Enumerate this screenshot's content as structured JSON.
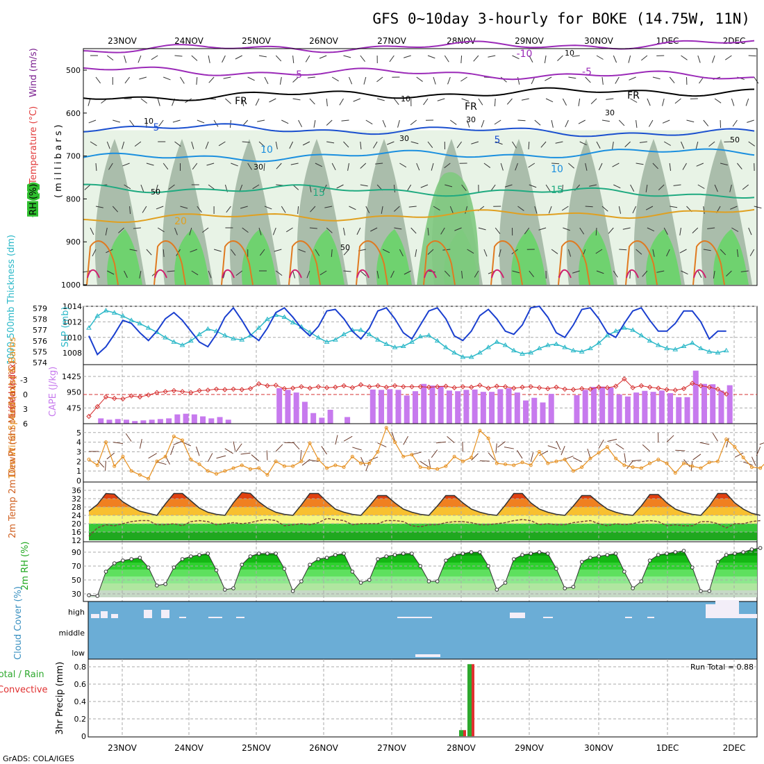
{
  "title": "GFS 0~10day 3-hourly for BOKE (14.75W, 11N)",
  "dates": [
    "23NOV",
    "24NOV",
    "25NOV",
    "26NOV",
    "27NOV",
    "28NOV",
    "29NOV",
    "30NOV",
    "1DEC",
    "2DEC"
  ],
  "credit": "GrADS: COLA/IGES",
  "colors": {
    "rh_green": "#2fbf2f",
    "temp_label": "#e23b3b",
    "wind_label": "#7a1f8f",
    "slp": "#1a3fcf",
    "thickness": "#2bb8c8",
    "lifted_index": "#d63030",
    "cape": "#c77aee",
    "wind10m": "#e69020",
    "rh2m": "#1fa81f",
    "cloud": "#6badd6",
    "precip_total": "#2da82d",
    "precip_conv": "#e03030"
  },
  "panels": {
    "upper": {
      "ylabels": [
        "RH (%)",
        "Temperature (°C)",
        "Wind (m/s)"
      ],
      "axis_label": "(millibars)",
      "ticks": [
        "500",
        "600",
        "700",
        "800",
        "900",
        "1000"
      ],
      "contour_labels": {
        "temp": [
          {
            "text": "-10",
            "color": "#9b2ab8"
          },
          {
            "text": "-5",
            "color": "#9b2ab8"
          },
          {
            "text": "-5",
            "color": "#9b2ab8"
          },
          {
            "text": "FR",
            "color": "#000000"
          },
          {
            "text": "FR",
            "color": "#000000"
          },
          {
            "text": "FR",
            "color": "#000000"
          },
          {
            "text": "5",
            "color": "#1a4fcf"
          },
          {
            "text": "5",
            "color": "#1a4fcf"
          },
          {
            "text": "10",
            "color": "#1a8fdf"
          },
          {
            "text": "10",
            "color": "#1a8fdf"
          },
          {
            "text": "15",
            "color": "#1faa80"
          },
          {
            "text": "15",
            "color": "#1faa80"
          },
          {
            "text": "20",
            "color": "#e0a020"
          }
        ],
        "rh": [
          "10",
          "10",
          "10",
          "30",
          "30",
          "30",
          "30",
          "50",
          "50",
          "50"
        ]
      }
    },
    "slp": {
      "ylabel_thickness": "1000-500mb Thickness (dm)",
      "ylabel_slp": "SLP (mb)",
      "ticks_left": [
        "579",
        "578",
        "577",
        "576",
        "575",
        "574"
      ],
      "ticks_right": [
        "1014",
        "1012",
        "1010",
        "1008"
      ]
    },
    "cape": {
      "ylabel_li": "Lifted Index",
      "ylabel_cape": "CAPE (J/kg)",
      "ticks_left": [
        "-3",
        "0",
        "3",
        "6"
      ],
      "ticks_right": [
        "1425",
        "950",
        "475"
      ]
    },
    "wind10": {
      "ylabel": "10m Wind Speed (m/s) & Barbs",
      "ticks": [
        "5",
        "4",
        "3",
        "2",
        "1",
        "0"
      ]
    },
    "temp2m": {
      "ylabel": "2m Temp 2m DewPt (6hr Min/Max) (°C)",
      "ticks": [
        "36",
        "32",
        "28",
        "24",
        "20",
        "16",
        "12"
      ]
    },
    "rh2m": {
      "ylabel": "2m RH (%)",
      "ticks": [
        "90",
        "70",
        "50",
        "30"
      ]
    },
    "cloud": {
      "ylabel": "Cloud Cover (%)",
      "ticks": [
        "high",
        "middle",
        "low"
      ]
    },
    "precip": {
      "ylabel": "3hr Precip (mm)",
      "legend_total": "Total / Rain",
      "legend_conv": "Convective",
      "ticks": [
        "0.8",
        "0.6",
        "0.4",
        "0.2",
        "0"
      ],
      "run_total": "Run Total = 0.88"
    }
  },
  "chart_data": {
    "type": "line",
    "time_step_hours": 3,
    "x_dates": [
      "23NOV",
      "24NOV",
      "25NOV",
      "26NOV",
      "27NOV",
      "28NOV",
      "29NOV",
      "30NOV",
      "1DEC",
      "2DEC"
    ],
    "slp_mb": [
      1010.2,
      1007.8,
      1008.8,
      1010.4,
      1012.2,
      1011.8,
      1010.6,
      1009.6,
      1010.8,
      1012.4,
      1013.2,
      1012.2,
      1010.8,
      1009.4,
      1008.8,
      1010.4,
      1012.6,
      1013.8,
      1012.2,
      1010.4,
      1009.6,
      1011.2,
      1013.2,
      1013.8,
      1012.6,
      1011.2,
      1010.2,
      1011.4,
      1013.4,
      1013.6,
      1012.4,
      1010.8,
      1009.8,
      1011.2,
      1013.4,
      1013.8,
      1012.4,
      1010.6,
      1009.8,
      1011.6,
      1013.4,
      1013.8,
      1012.4,
      1010.2,
      1009.6,
      1010.8,
      1012.8,
      1013.6,
      1012.4,
      1010.8,
      1010.4,
      1011.6,
      1013.8,
      1014.0,
      1012.6,
      1010.6,
      1010.0,
      1011.6,
      1013.6,
      1013.8,
      1012.4,
      1010.6,
      1010.0,
      1011.8,
      1013.4,
      1013.8,
      1012.2,
      1010.8,
      1010.8,
      1011.8,
      1013.4,
      1013.4,
      1012.0,
      1009.8,
      1010.8,
      1010.8
    ],
    "thickness_dm": [
      577.2,
      578.3,
      578.8,
      578.6,
      578.3,
      577.9,
      577.6,
      577.2,
      576.8,
      576.3,
      575.9,
      575.6,
      576.0,
      576.6,
      577.1,
      576.9,
      576.5,
      576.2,
      576.1,
      576.5,
      577.2,
      578.0,
      578.4,
      578.2,
      577.7,
      577.3,
      576.8,
      576.3,
      575.9,
      576.1,
      576.6,
      577.0,
      577.0,
      576.6,
      576.1,
      575.7,
      575.4,
      575.5,
      575.9,
      576.4,
      576.5,
      576.0,
      575.4,
      574.9,
      574.5,
      574.5,
      574.9,
      575.4,
      575.9,
      575.6,
      575.1,
      574.8,
      574.9,
      575.3,
      575.6,
      575.7,
      575.4,
      575.1,
      575.0,
      575.3,
      575.8,
      576.5,
      576.9,
      577.2,
      577.0,
      576.5,
      576.0,
      575.6,
      575.3,
      575.2,
      575.5,
      575.8,
      575.3,
      575.0,
      574.9,
      575.1
    ],
    "lifted_index": [
      4.5,
      2.5,
      0.5,
      0.8,
      0.9,
      0.3,
      0.5,
      0.1,
      -0.4,
      -0.6,
      -0.8,
      -0.6,
      -0.4,
      -0.8,
      -0.9,
      -1.1,
      -1.0,
      -1.1,
      -1.0,
      -1.2,
      -2.2,
      -1.8,
      -1.9,
      -1.2,
      -1.3,
      -1.6,
      -1.3,
      -1.6,
      -1.4,
      -1.5,
      -1.8,
      -1.4,
      -2.0,
      -1.6,
      -1.8,
      -1.5,
      -1.8,
      -1.6,
      -1.6,
      -1.6,
      -1.5,
      -1.6,
      -1.7,
      -1.4,
      -1.6,
      -1.5,
      -1.9,
      -1.3,
      -1.7,
      -1.6,
      -1.3,
      -1.5,
      -1.6,
      -1.4,
      -1.2,
      -1.5,
      -1.1,
      -1.0,
      -1.2,
      -1.1,
      -1.5,
      -1.4,
      -1.7,
      -3.2,
      -1.4,
      -1.8,
      -1.5,
      -1.3,
      -1.0,
      -0.9,
      -1.2,
      -2.3,
      -1.8,
      -1.5,
      -1.1,
      -0.1
    ],
    "cape_jkg": [
      0,
      160,
      120,
      140,
      120,
      80,
      100,
      120,
      140,
      160,
      280,
      300,
      280,
      220,
      160,
      200,
      120,
      0,
      0,
      0,
      0,
      0,
      1070,
      1020,
      940,
      660,
      320,
      180,
      420,
      0,
      200,
      0,
      0,
      1030,
      1020,
      1040,
      1020,
      850,
      980,
      1200,
      1150,
      1140,
      1000,
      980,
      1020,
      1030,
      960,
      960,
      1040,
      1070,
      940,
      700,
      780,
      640,
      900,
      0,
      0,
      860,
      1020,
      1110,
      1120,
      1090,
      880,
      820,
      940,
      990,
      960,
      1000,
      920,
      800,
      800,
      1600,
      1200,
      1190,
      1000,
      1160
    ],
    "wind10m_ms": [
      2.2,
      1.6,
      4.0,
      1.5,
      2.5,
      1.0,
      0.6,
      0.2,
      2.0,
      2.5,
      4.6,
      4.2,
      2.2,
      1.7,
      1.0,
      0.7,
      1.0,
      1.3,
      1.6,
      1.2,
      1.3,
      0.6,
      2.0,
      1.5,
      1.5,
      2.0,
      3.9,
      2.2,
      1.3,
      1.6,
      1.4,
      2.5,
      1.8,
      1.8,
      3.0,
      5.5,
      4.0,
      2.5,
      2.7,
      1.4,
      1.3,
      1.2,
      1.5,
      2.5,
      2.0,
      2.4,
      5.2,
      4.4,
      1.8,
      1.7,
      1.6,
      1.9,
      1.6,
      3.0,
      1.8,
      2.0,
      2.2,
      1.0,
      1.4,
      2.3,
      2.9,
      3.5,
      2.3,
      1.6,
      1.4,
      1.3,
      1.8,
      2.2,
      1.8,
      0.8,
      1.8,
      1.5,
      1.3,
      1.9,
      2.0,
      4.3,
      3.5,
      2.4,
      1.4,
      1.3,
      2.2
    ],
    "temp2m_c": [
      26.0,
      29.2,
      34.5,
      34.2,
      30.5,
      28.0,
      26.0,
      25.0,
      24.0,
      29.5,
      34.5,
      34.5,
      31.0,
      27.5,
      25.5,
      24.5,
      24.0,
      30.0,
      35.0,
      34.5,
      30.5,
      27.5,
      25.5,
      24.5,
      24.0,
      29.0,
      34.5,
      34.5,
      30.5,
      27.0,
      25.5,
      24.5,
      24.0,
      28.5,
      33.5,
      33.5,
      30.0,
      27.0,
      25.5,
      24.5,
      24.0,
      28.5,
      33.5,
      33.5,
      30.0,
      27.0,
      25.5,
      24.5,
      24.0,
      29.0,
      34.5,
      34.5,
      30.0,
      27.0,
      25.5,
      24.5,
      24.0,
      28.5,
      33.5,
      33.5,
      30.0,
      27.0,
      25.5,
      24.5,
      24.0,
      28.5,
      34.0,
      34.0,
      30.0,
      27.0,
      25.5,
      24.5,
      24.0,
      28.5,
      34.5,
      34.5,
      30.0,
      27.0,
      25.0,
      24.0
    ],
    "dewpoint2m_c": [
      14.0,
      18.0,
      19.5,
      19.0,
      20.0,
      21.0,
      21.5,
      21.5,
      19.5,
      19.5,
      20.0,
      19.0,
      21.0,
      21.5,
      21.0,
      19.5,
      20.0,
      20.5,
      20.0,
      20.5,
      21.5,
      22.0,
      21.5,
      19.0,
      19.5,
      20.0,
      19.5,
      20.5,
      22.5,
      22.0,
      21.5,
      19.5,
      20.0,
      20.0,
      20.0,
      21.5,
      21.5,
      21.0,
      19.0,
      18.5,
      19.5,
      19.5,
      20.5,
      21.0,
      21.0,
      20.5,
      19.5,
      19.5,
      20.0,
      20.5,
      21.5,
      22.0,
      21.5,
      19.5,
      20.0,
      19.5,
      19.5,
      20.5,
      21.0,
      21.5,
      20.0,
      19.0,
      20.0,
      19.5,
      20.0,
      21.0,
      21.5,
      21.0,
      19.0,
      19.5,
      19.0,
      19.0,
      21.0,
      21.0,
      20.0,
      18.0,
      20.0,
      20.0,
      21.0,
      21.5
    ],
    "rh2m_pct": [
      28,
      27,
      62,
      74,
      78,
      80,
      82,
      68,
      42,
      44,
      68,
      80,
      84,
      86,
      88,
      64,
      36,
      38,
      72,
      84,
      88,
      88,
      88,
      66,
      34,
      48,
      72,
      80,
      82,
      86,
      88,
      62,
      46,
      50,
      80,
      84,
      86,
      88,
      88,
      70,
      48,
      48,
      78,
      86,
      88,
      90,
      90,
      70,
      36,
      46,
      80,
      86,
      88,
      90,
      88,
      66,
      38,
      40,
      76,
      82,
      84,
      86,
      88,
      62,
      38,
      48,
      78,
      86,
      88,
      90,
      92,
      68,
      34,
      34,
      76,
      86,
      88,
      90,
      94,
      96
    ]
  }
}
